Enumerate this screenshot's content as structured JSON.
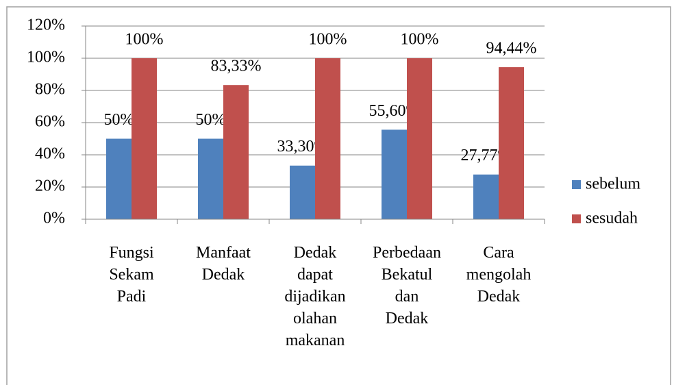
{
  "chart_data": {
    "type": "bar",
    "categories": [
      "Fungsi Sekam Padi",
      "Manfaat Dedak",
      "Dedak dapat dijadikan olahan makanan",
      "Perbedaan Bekatul dan Dedak",
      "Cara mengolah Dedak"
    ],
    "series": [
      {
        "name": "sebelum",
        "color": "#4f81bd",
        "values": [
          50,
          50,
          33.3,
          55.6,
          27.77
        ],
        "value_labels": [
          "50%",
          "50%",
          "33,30%",
          "55,60%",
          "27,77%"
        ]
      },
      {
        "name": "sesudah",
        "color": "#c0504d",
        "values": [
          100,
          83.33,
          100,
          100,
          94.44
        ],
        "value_labels": [
          "100%",
          "83,33%",
          "100%",
          "100%",
          "94,44%"
        ]
      }
    ],
    "ylim": [
      0,
      120
    ],
    "yticks": [
      {
        "value": 0,
        "label": "0%"
      },
      {
        "value": 20,
        "label": "20%"
      },
      {
        "value": 40,
        "label": "40%"
      },
      {
        "value": 60,
        "label": "60%"
      },
      {
        "value": 80,
        "label": "80%"
      },
      {
        "value": 100,
        "label": "100%"
      },
      {
        "value": 120,
        "label": "120%"
      }
    ],
    "grid": true,
    "legend": "right"
  }
}
